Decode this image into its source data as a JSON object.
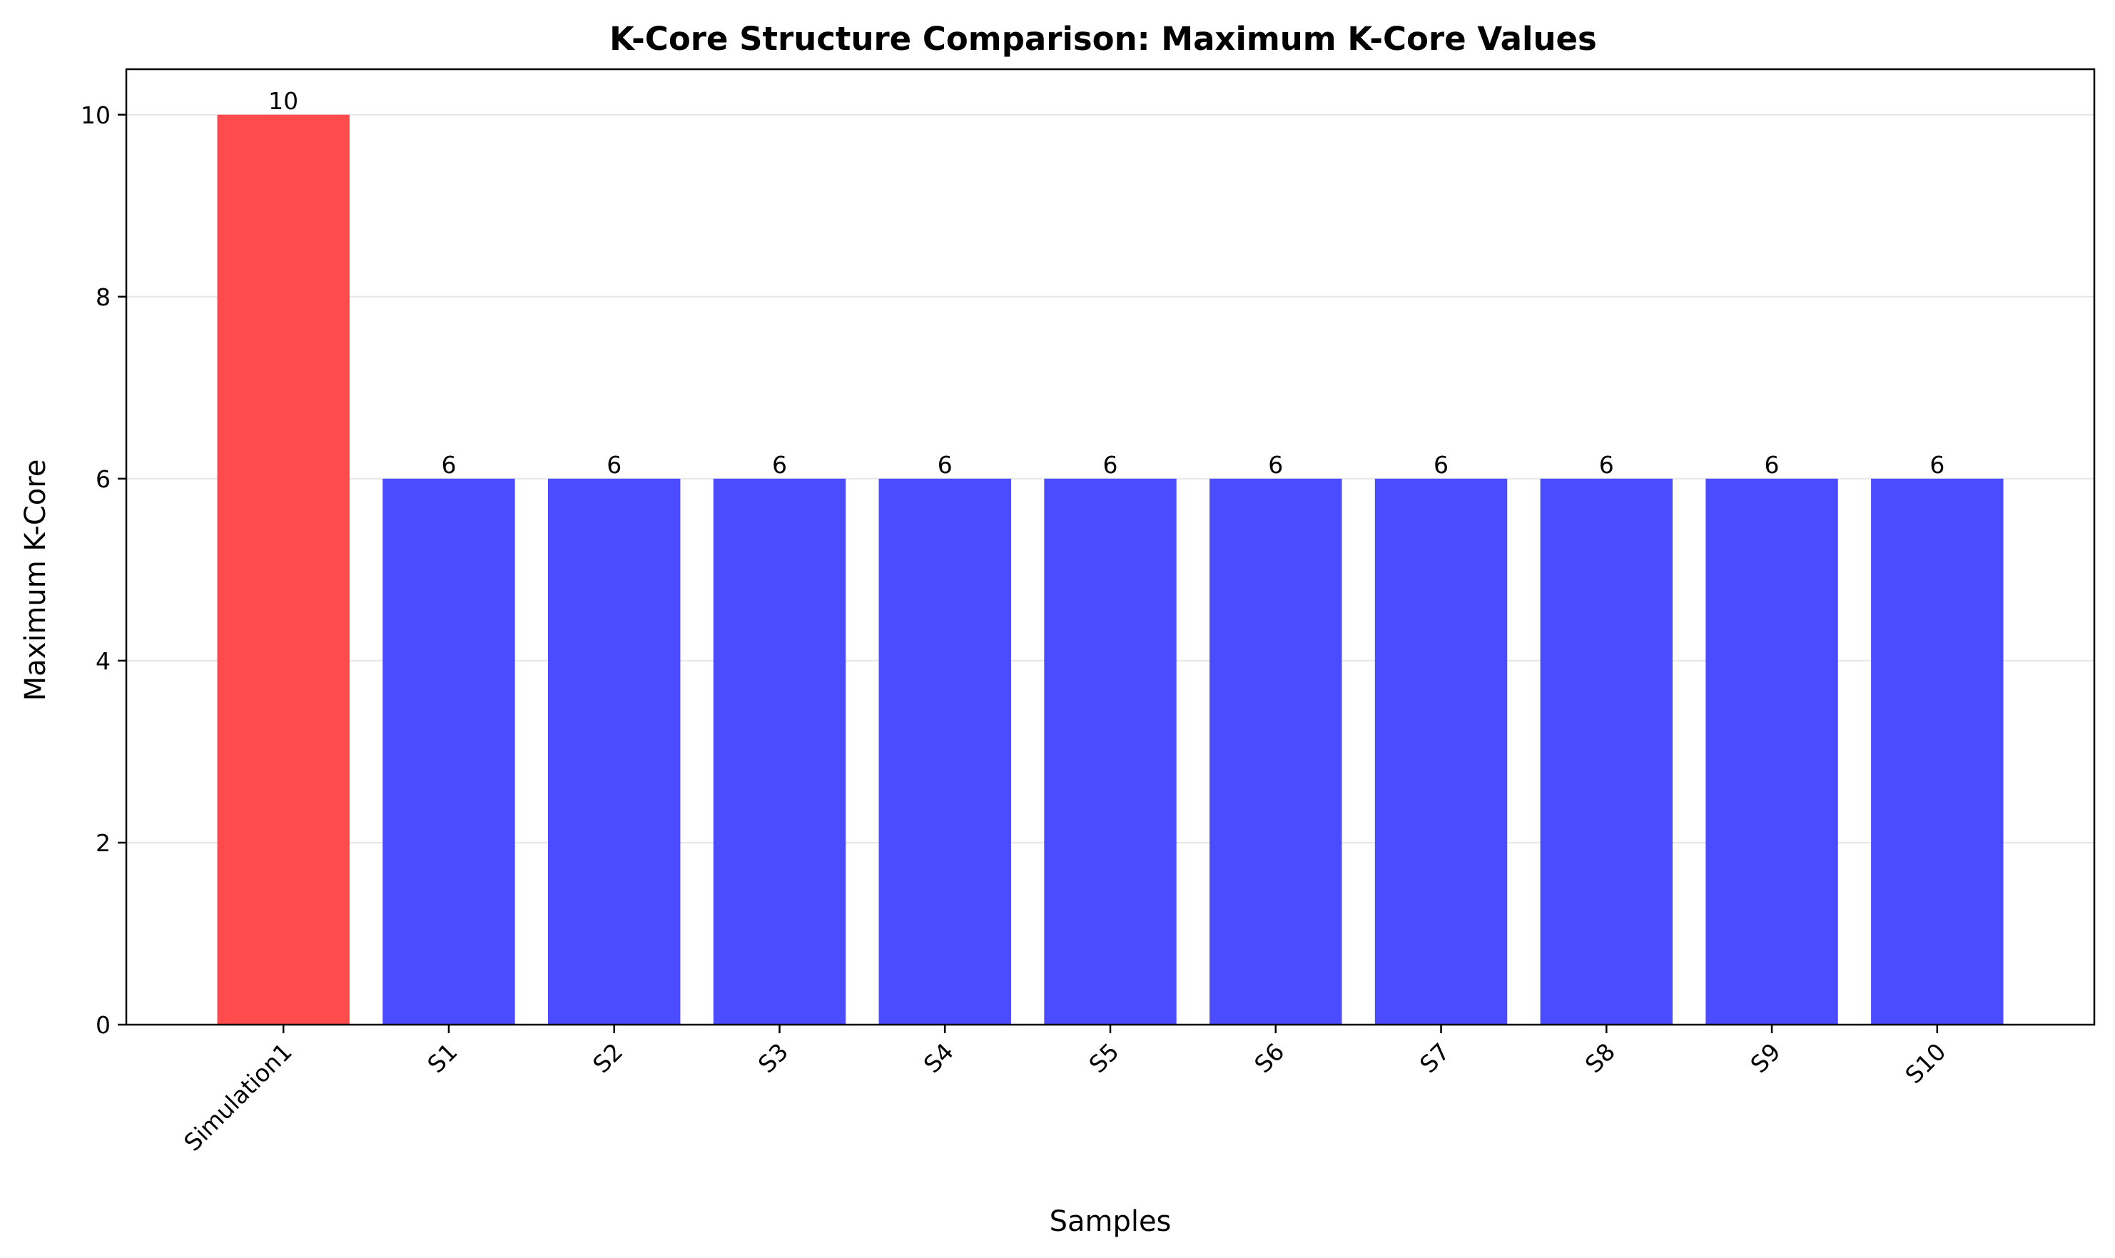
{
  "chart_data": {
    "type": "bar",
    "title": "K-Core Structure Comparison: Maximum K-Core Values",
    "xlabel": "Samples",
    "ylabel": "Maximum K-Core",
    "categories": [
      "Simulation1",
      "S1",
      "S2",
      "S3",
      "S4",
      "S5",
      "S6",
      "S7",
      "S8",
      "S9",
      "S10"
    ],
    "values": [
      10,
      6,
      6,
      6,
      6,
      6,
      6,
      6,
      6,
      6,
      6
    ],
    "data_labels": [
      "10",
      "6",
      "6",
      "6",
      "6",
      "6",
      "6",
      "6",
      "6",
      "6",
      "6"
    ],
    "colors": [
      "#ff4b4b",
      "#4b4bff",
      "#4b4bff",
      "#4b4bff",
      "#4b4bff",
      "#4b4bff",
      "#4b4bff",
      "#4b4bff",
      "#4b4bff",
      "#4b4bff",
      "#4b4bff"
    ],
    "ylim": [
      0,
      10.5
    ],
    "yticks": [
      0,
      2,
      4,
      6,
      8,
      10
    ],
    "grid": "y",
    "legend": "none"
  }
}
